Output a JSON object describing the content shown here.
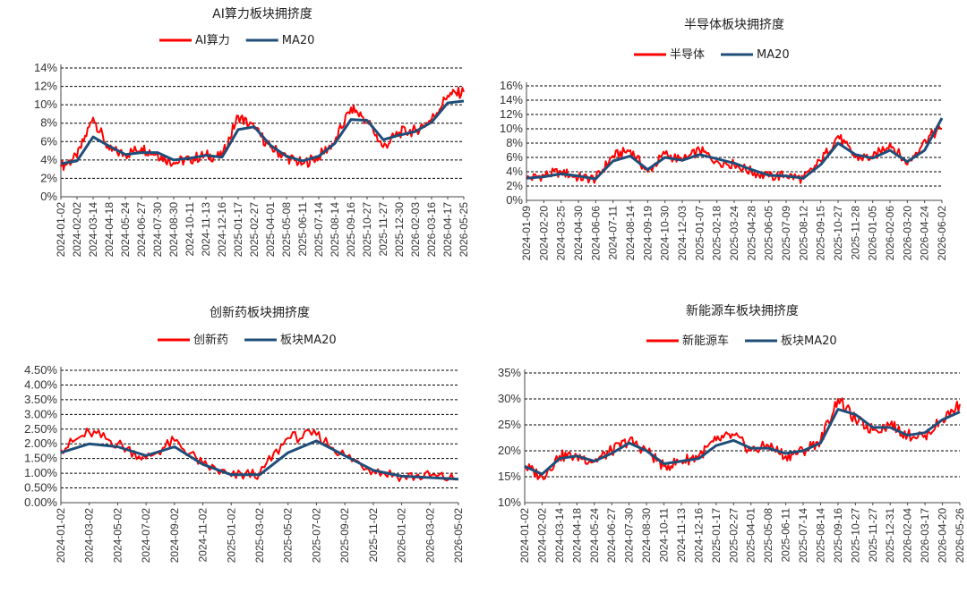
{
  "colors": {
    "raw": "#ff0000",
    "ma": "#1f4e79"
  },
  "chart_data": [
    {
      "type": "line",
      "title": "AI算力板块拥挤度",
      "ytick_labels": [
        "0%",
        "2%",
        "4%",
        "6%",
        "8%",
        "10%",
        "12%",
        "14%"
      ],
      "yticks": [
        0,
        2,
        4,
        6,
        8,
        10,
        12,
        14
      ],
      "ylim": [
        0,
        14
      ],
      "x": [
        "2024-01-02",
        "2024-02-02",
        "2024-03-14",
        "2024-04-18",
        "2024-05-24",
        "2024-06-27",
        "2024-07-30",
        "2024-08-30",
        "2024-10-11",
        "2024-11-13",
        "2024-12-16",
        "2025-01-17",
        "2025-02-27",
        "2025-04-01",
        "2025-05-08",
        "2025-06-11",
        "2025-07-14",
        "2025-08-14",
        "2025-09-16",
        "2025-10-27",
        "2025-11-27",
        "2025-12-30",
        "2026-02-03",
        "2026-03-16",
        "2026-04-17",
        "2026-05-25"
      ],
      "series": [
        {
          "name": "AI算力",
          "values": [
            3.3,
            4.3,
            8.6,
            5.1,
            4.6,
            5.3,
            4.6,
            3.7,
            4.1,
            4.5,
            4.3,
            8.8,
            7.4,
            5.4,
            4.3,
            3.6,
            4.4,
            6.0,
            9.7,
            8.3,
            5.4,
            7.0,
            7.2,
            8.4,
            11.0,
            11.4
          ]
        },
        {
          "name": "MA20",
          "values": [
            3.6,
            3.9,
            6.5,
            5.5,
            4.6,
            4.8,
            4.8,
            4.0,
            4.2,
            4.5,
            4.3,
            7.3,
            7.6,
            5.6,
            4.4,
            3.9,
            4.4,
            5.8,
            8.4,
            8.3,
            6.2,
            6.7,
            7.1,
            8.1,
            10.2,
            10.4
          ]
        }
      ],
      "legend_position": "top"
    },
    {
      "type": "line",
      "title": "半导体板块拥挤度",
      "ytick_labels": [
        "0%",
        "2%",
        "4%",
        "6%",
        "8%",
        "10%",
        "12%",
        "14%",
        "16%"
      ],
      "yticks": [
        0,
        2,
        4,
        6,
        8,
        10,
        12,
        14,
        16
      ],
      "ylim": [
        0,
        16
      ],
      "x": [
        "2024-01-09",
        "2024-02-20",
        "2024-03-25",
        "2024-04-30",
        "2024-06-06",
        "2024-07-11",
        "2024-08-14",
        "2024-09-19",
        "2024-10-30",
        "2024-12-03",
        "2025-01-07",
        "2025-02-18",
        "2025-03-24",
        "2025-04-28",
        "2025-06-05",
        "2025-07-09",
        "2025-08-12",
        "2025-09-15",
        "2025-10-27",
        "2025-11-28",
        "2026-01-05",
        "2026-02-06",
        "2026-03-20",
        "2026-04-24",
        "2026-06-02"
      ],
      "series": [
        {
          "name": "半导体",
          "values": [
            3.0,
            3.5,
            4.0,
            3.2,
            3.0,
            6.2,
            7.0,
            4.0,
            6.5,
            5.5,
            7.0,
            5.5,
            5.0,
            4.0,
            3.3,
            3.5,
            3.0,
            5.5,
            9.0,
            6.0,
            6.0,
            8.0,
            5.0,
            8.5,
            10.0
          ]
        },
        {
          "name": "MA20",
          "values": [
            3.1,
            3.3,
            3.7,
            3.4,
            3.0,
            5.5,
            6.2,
            4.3,
            6.0,
            5.6,
            6.4,
            5.8,
            5.2,
            4.3,
            3.5,
            3.4,
            3.1,
            5.0,
            8.0,
            6.4,
            5.9,
            7.0,
            5.4,
            7.0,
            11.5
          ]
        }
      ],
      "legend_position": "top"
    },
    {
      "type": "line",
      "title": "创新药板块拥挤度",
      "ytick_labels": [
        "0.00%",
        "0.50%",
        "1.00%",
        "1.50%",
        "2.00%",
        "2.50%",
        "3.00%",
        "3.50%",
        "4.00%",
        "4.50%"
      ],
      "yticks": [
        0,
        0.5,
        1.0,
        1.5,
        2.0,
        2.5,
        3.0,
        3.5,
        4.0,
        4.5
      ],
      "ylim": [
        0,
        4.5
      ],
      "x": [
        "2024-01-02",
        "2024-03-02",
        "2024-05-02",
        "2024-07-02",
        "2024-09-02",
        "2024-11-02",
        "2025-01-02",
        "2025-03-02",
        "2025-05-02",
        "2025-07-02",
        "2025-09-02",
        "2025-11-02",
        "2026-01-02",
        "2026-03-02",
        "2026-05-02"
      ],
      "series": [
        {
          "name": "创新药",
          "values": [
            1.8,
            2.4,
            2.0,
            1.5,
            2.1,
            1.3,
            0.9,
            1.0,
            2.2,
            2.3,
            1.6,
            1.1,
            0.9,
            0.9,
            0.8
          ]
        },
        {
          "name": "板块MA20",
          "values": [
            1.7,
            2.0,
            1.9,
            1.6,
            1.9,
            1.3,
            0.95,
            0.95,
            1.7,
            2.1,
            1.6,
            1.1,
            0.9,
            0.85,
            0.8
          ]
        }
      ],
      "legend_position": "top"
    },
    {
      "type": "line",
      "title": "新能源车板块拥挤度",
      "ytick_labels": [
        "10%",
        "15%",
        "20%",
        "25%",
        "30%",
        "35%"
      ],
      "yticks": [
        10,
        15,
        20,
        25,
        30,
        35
      ],
      "ylim": [
        10,
        35
      ],
      "x": [
        "2024-01-02",
        "2024-02-02",
        "2024-03-14",
        "2024-04-18",
        "2024-05-24",
        "2024-06-27",
        "2024-07-30",
        "2024-08-30",
        "2024-10-11",
        "2024-11-13",
        "2024-12-16",
        "2025-01-17",
        "2025-02-27",
        "2025-04-01",
        "2025-05-08",
        "2025-06-11",
        "2025-07-14",
        "2025-08-14",
        "2025-09-16",
        "2025-10-27",
        "2025-11-27",
        "2025-12-31",
        "2026-02-04",
        "2026-03-17",
        "2026-04-20",
        "2026-05-26"
      ],
      "series": [
        {
          "name": "新能源车",
          "values": [
            17,
            15,
            19,
            19,
            18,
            20,
            22,
            20,
            17,
            18,
            19,
            22,
            23,
            20,
            21,
            19,
            20,
            22,
            30,
            26,
            24,
            25,
            23,
            23,
            26,
            29
          ]
        },
        {
          "name": "板块MA20",
          "values": [
            17,
            15.5,
            18.5,
            19,
            18,
            19.5,
            21.5,
            20,
            17.5,
            18,
            18.5,
            21,
            22,
            20.5,
            20.5,
            19.5,
            20,
            21.5,
            28,
            27,
            24.5,
            24.5,
            23,
            23.5,
            26,
            27.5
          ]
        }
      ],
      "legend_position": "top"
    }
  ]
}
